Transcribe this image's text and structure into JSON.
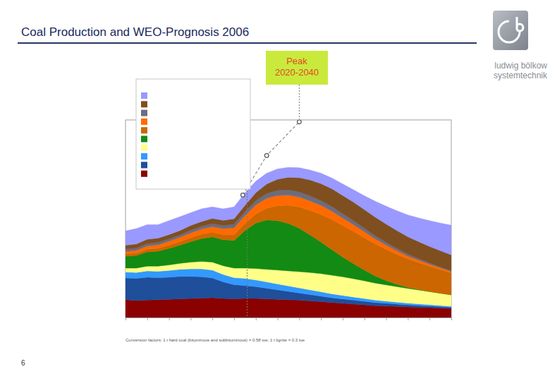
{
  "slide": {
    "title": "Coal Production and WEO-Prognosis 2006",
    "logo_text": [
      "ludwig bölkow",
      "systemtechnik"
    ],
    "page_number": 6,
    "footnote": "Conversion factors: 1 t hard coal (bituminous and subbituminous) = 0.58 toe; 1 t lignite = 0.3 toe"
  },
  "chart_data": {
    "type": "area",
    "stacked": true,
    "legend": "top-left",
    "tick_labels": false,
    "annotations": [
      "Peak",
      "2020-2040"
    ],
    "reference_x": 2006,
    "xlim": [
      1950,
      2100
    ],
    "ylim": [
      0,
      5000
    ],
    "xticks": [
      1950,
      1960,
      1970,
      1980,
      1990,
      2000,
      2010,
      2020,
      2030,
      2040,
      2050,
      2060,
      2070,
      2080,
      2090,
      2100
    ],
    "x": [
      1950,
      1955,
      1960,
      1965,
      1970,
      1975,
      1980,
      1985,
      1990,
      1995,
      2000,
      2005,
      2010,
      2015,
      2020,
      2025,
      2030,
      2035,
      2040,
      2045,
      2050,
      2055,
      2060,
      2065,
      2070,
      2075,
      2080,
      2085,
      2090,
      2095,
      2100
    ],
    "series": [
      {
        "color": "#8b0000",
        "values": [
          450,
          430,
          440,
          450,
          460,
          470,
          480,
          490,
          500,
          480,
          470,
          480,
          480,
          470,
          460,
          450,
          440,
          420,
          400,
          380,
          360,
          340,
          320,
          300,
          290,
          280,
          270,
          260,
          250,
          240,
          230
        ]
      },
      {
        "color": "#1f4e9a",
        "values": [
          550,
          560,
          580,
          560,
          560,
          570,
          560,
          540,
          500,
          420,
          360,
          330,
          300,
          270,
          240,
          210,
          180,
          160,
          140,
          120,
          110,
          100,
          90,
          80,
          70,
          60,
          50,
          45,
          40,
          35,
          30
        ]
      },
      {
        "color": "#3399ff",
        "values": [
          150,
          150,
          160,
          160,
          170,
          180,
          190,
          200,
          200,
          190,
          180,
          180,
          170,
          160,
          150,
          140,
          130,
          120,
          110,
          100,
          90,
          80,
          70,
          60,
          55,
          50,
          45,
          40,
          35,
          30,
          25
        ]
      },
      {
        "color": "#ffff88",
        "values": [
          100,
          110,
          120,
          130,
          140,
          150,
          170,
          190,
          200,
          220,
          240,
          260,
          290,
          320,
          350,
          380,
          410,
          440,
          460,
          470,
          470,
          460,
          450,
          430,
          410,
          390,
          370,
          350,
          330,
          310,
          290
        ]
      },
      {
        "color": "#138a13",
        "values": [
          300,
          320,
          360,
          380,
          420,
          460,
          520,
          580,
          640,
          660,
          700,
          950,
          1150,
          1250,
          1250,
          1200,
          1100,
          950,
          800,
          650,
          500,
          380,
          270,
          180,
          110,
          60,
          30,
          15,
          5,
          0,
          0
        ]
      },
      {
        "color": "#cc6600",
        "values": [
          60,
          60,
          70,
          70,
          80,
          90,
          100,
          110,
          120,
          130,
          150,
          180,
          230,
          300,
          380,
          460,
          540,
          620,
          700,
          760,
          800,
          820,
          820,
          810,
          790,
          760,
          720,
          680,
          640,
          600,
          560
        ]
      },
      {
        "color": "#ff6a00",
        "values": [
          60,
          70,
          80,
          90,
          100,
          110,
          120,
          130,
          140,
          150,
          170,
          200,
          230,
          250,
          260,
          260,
          250,
          240,
          230,
          210,
          190,
          170,
          150,
          130,
          110,
          90,
          70,
          60,
          50,
          40,
          30
        ]
      },
      {
        "color": "#6c6c80",
        "values": [
          60,
          60,
          60,
          60,
          60,
          60,
          70,
          70,
          80,
          80,
          90,
          100,
          110,
          120,
          130,
          130,
          130,
          130,
          120,
          120,
          110,
          100,
          90,
          80,
          70,
          60,
          50,
          40,
          30,
          25,
          20
        ]
      },
      {
        "color": "#7f4f1f",
        "values": [
          100,
          100,
          110,
          110,
          110,
          110,
          120,
          120,
          130,
          130,
          140,
          160,
          200,
          240,
          280,
          320,
          360,
          400,
          430,
          450,
          460,
          470,
          470,
          470,
          460,
          450,
          440,
          430,
          420,
          410,
          400
        ]
      },
      {
        "color": "#9999ff",
        "values": [
          360,
          390,
          370,
          340,
          350,
          350,
          320,
          320,
          290,
          290,
          300,
          310,
          290,
          270,
          260,
          250,
          250,
          250,
          260,
          270,
          290,
          310,
          350,
          400,
          450,
          500,
          550,
          600,
          650,
          700,
          750
        ]
      },
      {
        "type": "line",
        "marker": "circle",
        "line_style": "dashed",
        "color": "#8a8a8a",
        "x": [
          2004,
          2015,
          2030
        ],
        "values": [
          3100,
          4100,
          4950
        ]
      }
    ]
  }
}
